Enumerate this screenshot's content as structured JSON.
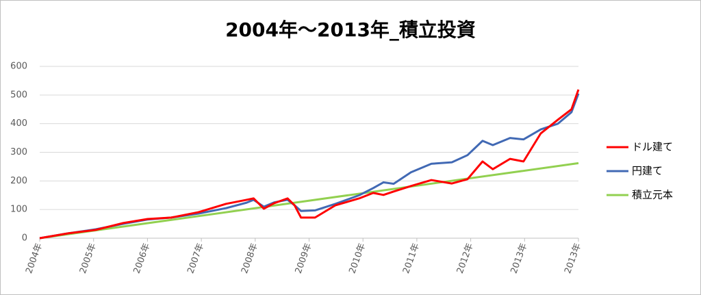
{
  "chart_data": {
    "type": "line",
    "title": "2004年～2013年_積立投資",
    "xlim": [
      2004,
      2014
    ],
    "xticks": [
      {
        "value": 2004,
        "label": "2004年"
      },
      {
        "value": 2005,
        "label": "2005年"
      },
      {
        "value": 2006,
        "label": "2006年"
      },
      {
        "value": 2007,
        "label": "2007年"
      },
      {
        "value": 2008,
        "label": "2008年"
      },
      {
        "value": 2009,
        "label": "2009年"
      },
      {
        "value": 2010,
        "label": "2010年"
      },
      {
        "value": 2011,
        "label": "2011年"
      },
      {
        "value": 2012,
        "label": "2012年"
      },
      {
        "value": 2013,
        "label": "2013年"
      },
      {
        "value": 2014,
        "label": "2013年"
      }
    ],
    "ylim": [
      0,
      600
    ],
    "yticks": [
      0,
      100,
      200,
      300,
      400,
      500,
      600
    ],
    "grid": true,
    "series": [
      {
        "name": "ドル建て",
        "color": "#ff0000",
        "x": [
          2004.0,
          2004.53,
          2005.04,
          2005.55,
          2006.0,
          2006.44,
          2006.95,
          2007.46,
          2007.84,
          2007.97,
          2008.16,
          2008.35,
          2008.6,
          2008.73,
          2008.85,
          2009.11,
          2009.49,
          2009.93,
          2010.19,
          2010.38,
          2010.57,
          2010.89,
          2011.27,
          2011.65,
          2011.94,
          2012.22,
          2012.41,
          2012.73,
          2012.98,
          2013.3,
          2013.62,
          2013.87,
          2014.0
        ],
        "values": [
          0,
          17,
          29,
          53,
          67,
          72,
          91,
          120,
          134,
          139,
          103,
          122,
          139,
          115,
          72,
          72,
          115,
          139,
          158,
          151,
          163,
          182,
          203,
          191,
          206,
          268,
          241,
          277,
          268,
          366,
          414,
          450,
          519
        ]
      },
      {
        "name": "円建て",
        "color": "#4169b4",
        "x": [
          2004.0,
          2004.53,
          2005.04,
          2005.55,
          2006.0,
          2006.44,
          2006.95,
          2007.46,
          2007.84,
          2007.97,
          2008.16,
          2008.35,
          2008.6,
          2008.73,
          2008.85,
          2009.11,
          2009.49,
          2009.93,
          2010.19,
          2010.38,
          2010.57,
          2010.89,
          2011.27,
          2011.65,
          2011.94,
          2012.22,
          2012.41,
          2012.73,
          2012.98,
          2013.3,
          2013.62,
          2013.87,
          2014.0
        ],
        "values": [
          0,
          17,
          31,
          50,
          65,
          72,
          86,
          105,
          124,
          134,
          110,
          125,
          134,
          115,
          95,
          97,
          120,
          150,
          175,
          195,
          190,
          230,
          260,
          265,
          290,
          340,
          325,
          350,
          345,
          380,
          400,
          440,
          505
        ]
      },
      {
        "name": "積立元本",
        "color": "#92d050",
        "x": [
          2004,
          2014
        ],
        "values": [
          0,
          262
        ]
      }
    ]
  }
}
